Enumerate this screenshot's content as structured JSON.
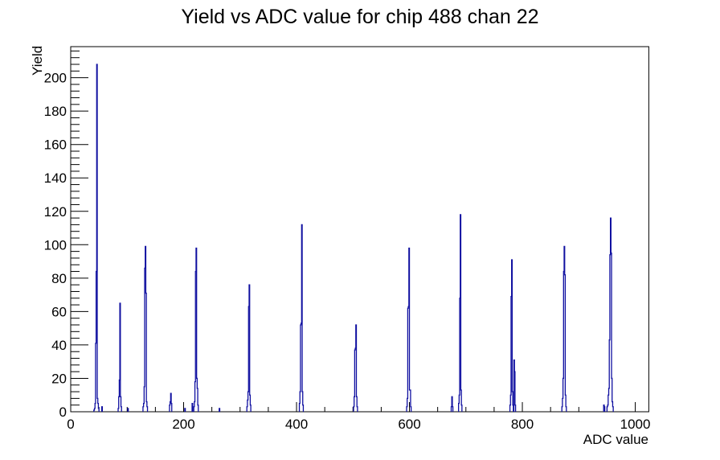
{
  "chart_data": {
    "type": "bar",
    "title": "Yield vs ADC value for chip 488 chan 22",
    "xlabel": "ADC value",
    "ylabel": "Yield",
    "xlim": [
      0,
      1024
    ],
    "ylim": [
      0,
      218.6
    ],
    "grid": "off",
    "legend": "none",
    "line_color": "#0f0fa0",
    "axis_color": "#000000",
    "background_color": "#ffffff",
    "x_major_ticks": [
      0,
      200,
      400,
      600,
      800,
      1000
    ],
    "x_major_labels": [
      "0",
      "200",
      "400",
      "600",
      "800",
      "1000"
    ],
    "x_minor_step": 50,
    "y_major_ticks": [
      0,
      20,
      40,
      60,
      80,
      100,
      120,
      140,
      160,
      180,
      200
    ],
    "y_major_labels": [
      "0",
      "20",
      "40",
      "60",
      "80",
      "100",
      "120",
      "140",
      "160",
      "180",
      "200"
    ],
    "y_minor_step": 4,
    "bin_width_adc": 1,
    "clusters": [
      {
        "start_adc": 41,
        "heights": [
          1,
          2,
          5,
          41,
          84,
          208,
          8,
          5,
          2
        ]
      },
      {
        "start_adc": 55,
        "heights": [
          3
        ]
      },
      {
        "start_adc": 84,
        "heights": [
          2,
          9,
          19,
          65,
          9,
          3
        ]
      },
      {
        "start_adc": 101,
        "heights": [
          2
        ]
      },
      {
        "start_adc": 128,
        "heights": [
          3,
          5,
          15,
          86,
          99,
          71,
          6,
          3
        ]
      },
      {
        "start_adc": 175,
        "heights": [
          4,
          6,
          11,
          5
        ]
      },
      {
        "start_adc": 202,
        "heights": [
          2
        ]
      },
      {
        "start_adc": 215,
        "heights": [
          5
        ]
      },
      {
        "start_adc": 218,
        "heights": [
          3,
          6,
          18,
          84,
          98,
          20,
          14,
          4
        ]
      },
      {
        "start_adc": 263,
        "heights": [
          2
        ]
      },
      {
        "start_adc": 312,
        "heights": [
          3,
          7,
          12,
          63,
          76,
          10,
          4
        ]
      },
      {
        "start_adc": 405,
        "heights": [
          5,
          12,
          52,
          53,
          112,
          12,
          4
        ]
      },
      {
        "start_adc": 501,
        "heights": [
          3,
          9,
          37,
          38,
          52,
          9,
          3
        ]
      },
      {
        "start_adc": 595,
        "heights": [
          3,
          8,
          62,
          63,
          98,
          13,
          13,
          3
        ]
      },
      {
        "start_adc": 674,
        "heights": [
          3,
          9,
          3
        ]
      },
      {
        "start_adc": 687,
        "heights": [
          5,
          10,
          68,
          118,
          13,
          4
        ]
      },
      {
        "start_adc": 778,
        "heights": [
          4,
          10,
          69,
          91,
          12,
          4
        ]
      },
      {
        "start_adc": 785,
        "heights": [
          31,
          24,
          4
        ]
      },
      {
        "start_adc": 870,
        "heights": [
          3,
          8,
          20,
          84,
          99,
          82,
          10,
          3
        ]
      },
      {
        "start_adc": 944,
        "heights": [
          4,
          3
        ]
      },
      {
        "start_adc": 950,
        "heights": [
          3,
          4,
          10,
          14,
          43,
          94,
          116,
          95,
          20,
          6,
          3
        ]
      }
    ]
  }
}
